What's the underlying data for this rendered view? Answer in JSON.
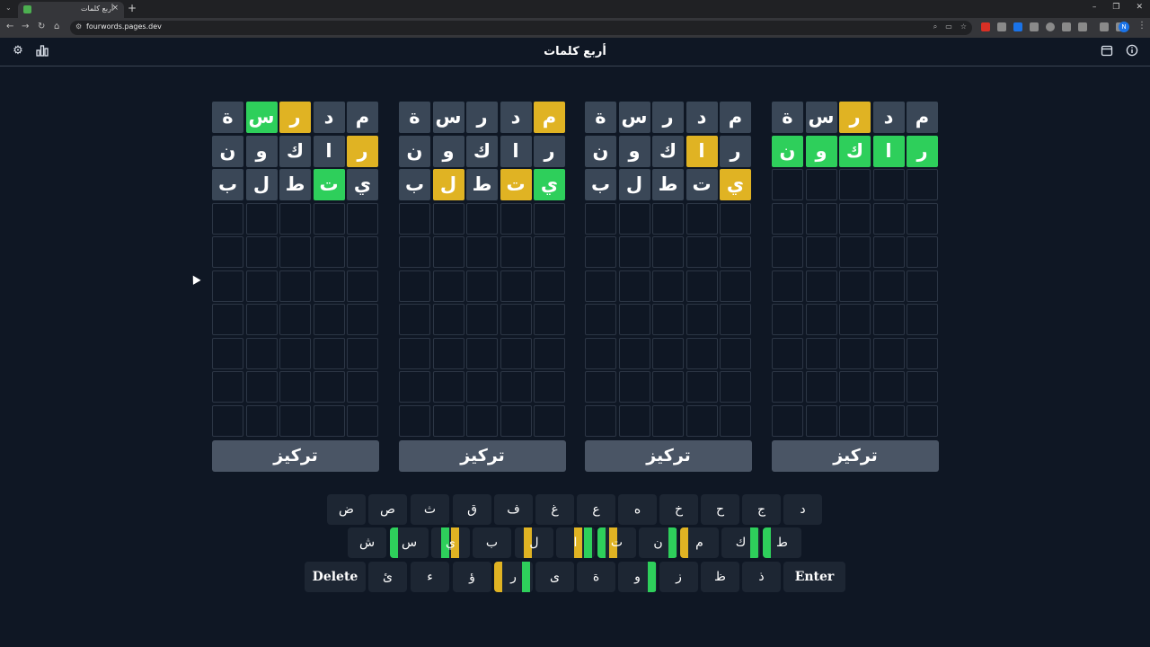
{
  "browser": {
    "tab_title": "أربع كلمات",
    "tab_close": "×",
    "new_tab": "+",
    "url": "fourwords.pages.dev",
    "window_min": "–",
    "window_restore": "❐",
    "window_close": "✕",
    "profile_initial": "N"
  },
  "app": {
    "title": "أربع كلمات",
    "focus_label": "تركيز"
  },
  "colors": {
    "yellow": "#e0b323",
    "green": "#2ecf5b",
    "filled": "#3a4757",
    "background": "#0f1724"
  },
  "boards": [
    {
      "rows": [
        [
          {
            "l": "م",
            "s": "f"
          },
          {
            "l": "د",
            "s": "f"
          },
          {
            "l": "ر",
            "s": "y"
          },
          {
            "l": "س",
            "s": "g"
          },
          {
            "l": "ة",
            "s": "f"
          }
        ],
        [
          {
            "l": "ر",
            "s": "y"
          },
          {
            "l": "ا",
            "s": "f"
          },
          {
            "l": "ك",
            "s": "f"
          },
          {
            "l": "و",
            "s": "f"
          },
          {
            "l": "ن",
            "s": "f"
          }
        ],
        [
          {
            "l": "ي",
            "s": "f"
          },
          {
            "l": "ت",
            "s": "g"
          },
          {
            "l": "ط",
            "s": "f"
          },
          {
            "l": "ل",
            "s": "f"
          },
          {
            "l": "ب",
            "s": "f"
          }
        ]
      ]
    },
    {
      "rows": [
        [
          {
            "l": "م",
            "s": "y"
          },
          {
            "l": "د",
            "s": "f"
          },
          {
            "l": "ر",
            "s": "f"
          },
          {
            "l": "س",
            "s": "f"
          },
          {
            "l": "ة",
            "s": "f"
          }
        ],
        [
          {
            "l": "ر",
            "s": "f"
          },
          {
            "l": "ا",
            "s": "f"
          },
          {
            "l": "ك",
            "s": "f"
          },
          {
            "l": "و",
            "s": "f"
          },
          {
            "l": "ن",
            "s": "f"
          }
        ],
        [
          {
            "l": "ي",
            "s": "g"
          },
          {
            "l": "ت",
            "s": "y"
          },
          {
            "l": "ط",
            "s": "f"
          },
          {
            "l": "ل",
            "s": "y"
          },
          {
            "l": "ب",
            "s": "f"
          }
        ]
      ]
    },
    {
      "rows": [
        [
          {
            "l": "م",
            "s": "f"
          },
          {
            "l": "د",
            "s": "f"
          },
          {
            "l": "ر",
            "s": "f"
          },
          {
            "l": "س",
            "s": "f"
          },
          {
            "l": "ة",
            "s": "f"
          }
        ],
        [
          {
            "l": "ر",
            "s": "f"
          },
          {
            "l": "ا",
            "s": "y"
          },
          {
            "l": "ك",
            "s": "f"
          },
          {
            "l": "و",
            "s": "f"
          },
          {
            "l": "ن",
            "s": "f"
          }
        ],
        [
          {
            "l": "ي",
            "s": "y"
          },
          {
            "l": "ت",
            "s": "f"
          },
          {
            "l": "ط",
            "s": "f"
          },
          {
            "l": "ل",
            "s": "f"
          },
          {
            "l": "ب",
            "s": "f"
          }
        ]
      ]
    },
    {
      "rows": [
        [
          {
            "l": "م",
            "s": "f"
          },
          {
            "l": "د",
            "s": "f"
          },
          {
            "l": "ر",
            "s": "y"
          },
          {
            "l": "س",
            "s": "f"
          },
          {
            "l": "ة",
            "s": "f"
          }
        ],
        [
          {
            "l": "ر",
            "s": "g"
          },
          {
            "l": "ا",
            "s": "g"
          },
          {
            "l": "ك",
            "s": "g"
          },
          {
            "l": "و",
            "s": "g"
          },
          {
            "l": "ن",
            "s": "g"
          }
        ]
      ]
    }
  ],
  "keyboard": {
    "row1": [
      "د",
      "ج",
      "ح",
      "خ",
      "ه",
      "ع",
      "غ",
      "ف",
      "ق",
      "ث",
      "ص",
      "ض"
    ],
    "row2": [
      "ط",
      "ك",
      "م",
      "ن",
      "ت",
      "ا",
      "ل",
      "ب",
      "ي",
      "س",
      "ش"
    ],
    "row3": [
      "Enter",
      "ذ",
      "ظ",
      "ز",
      "و",
      "ة",
      "ى",
      "ر",
      "ؤ",
      "ء",
      "ئ",
      "Delete"
    ]
  }
}
